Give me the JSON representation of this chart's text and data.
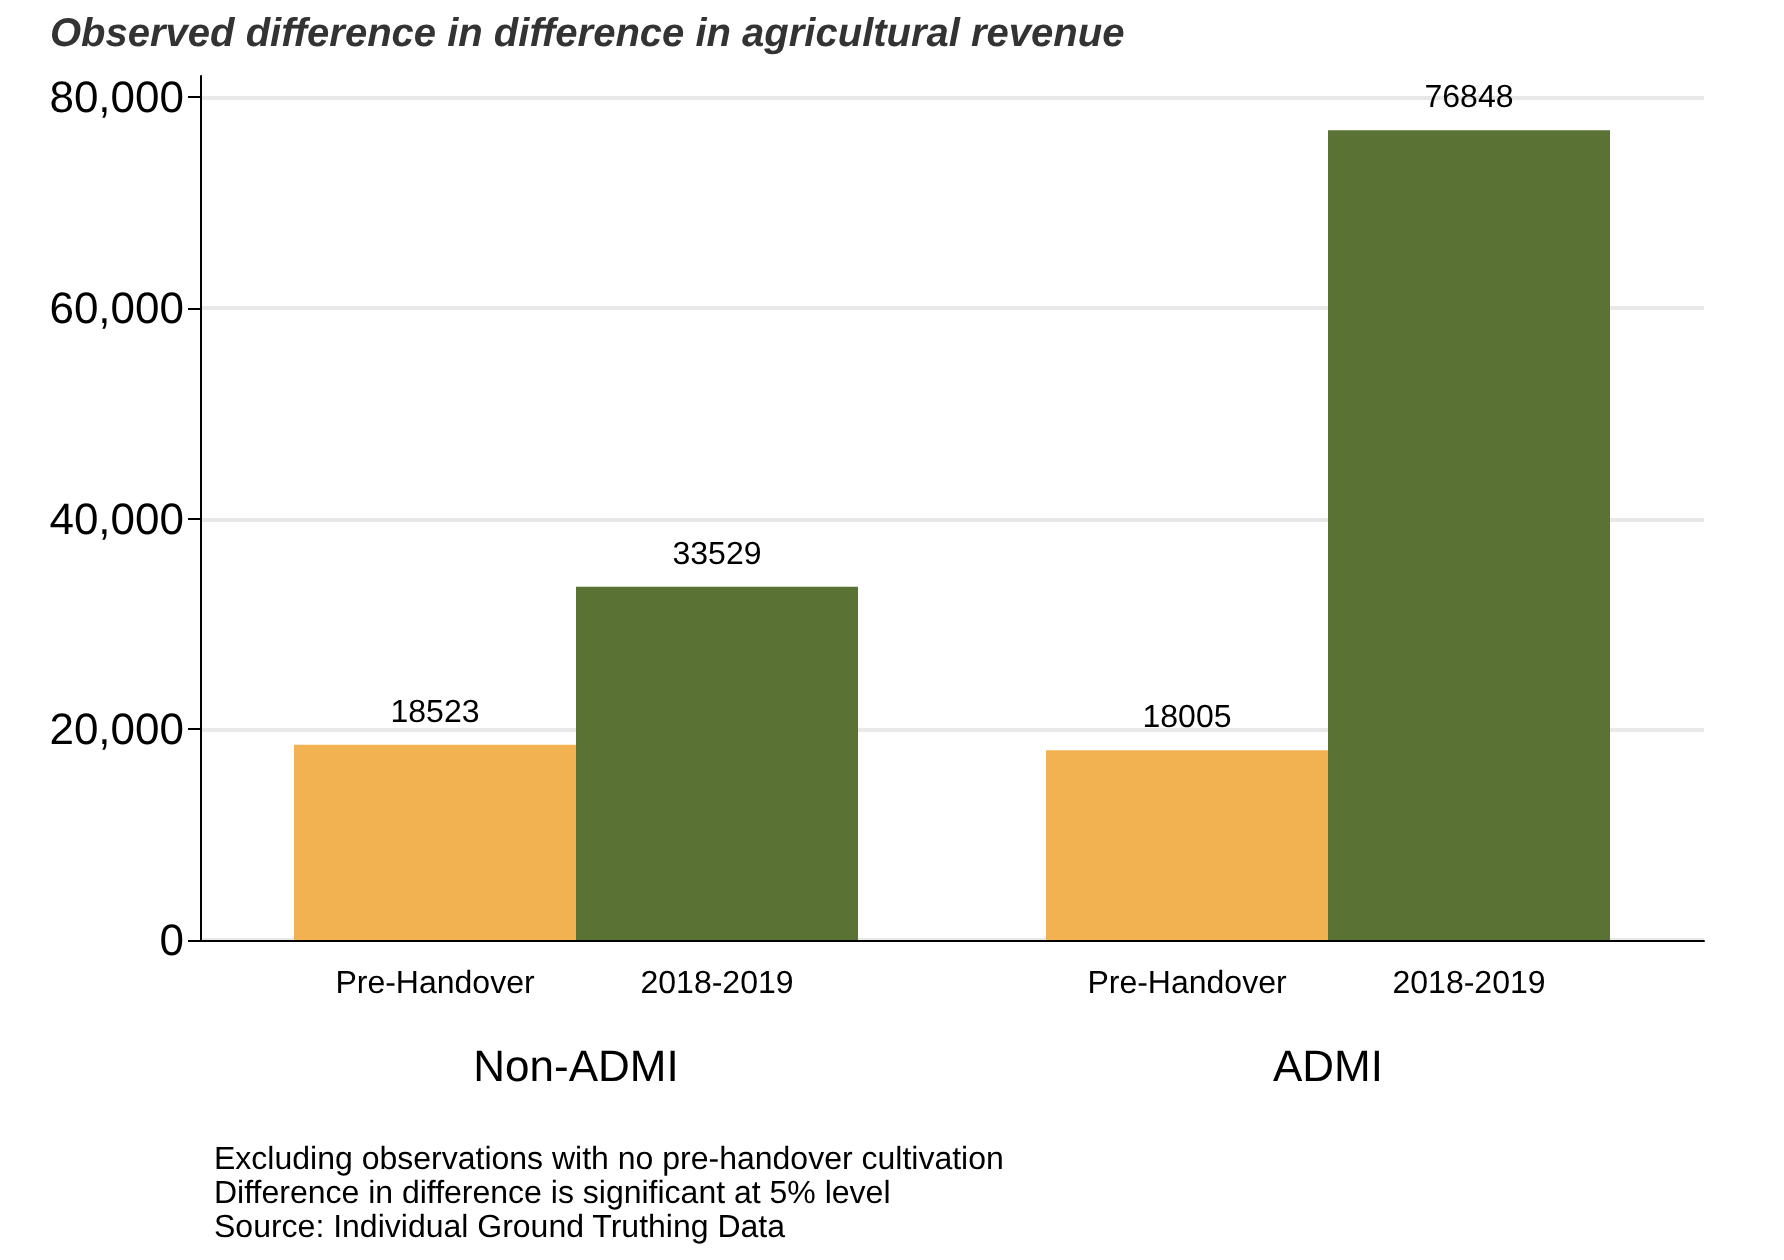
{
  "chart_data": {
    "type": "bar",
    "title": "Observed difference in difference in agricultural revenue",
    "categories": [
      "Non-ADMI",
      "ADMI"
    ],
    "series": [
      {
        "name": "Pre-Handover",
        "color": "#f2b252",
        "values": [
          18523,
          18005
        ]
      },
      {
        "name": "2018-2019",
        "color": "#5a7233",
        "values": [
          33529,
          76848
        ]
      }
    ],
    "ylim": [
      0,
      82000
    ],
    "yticks": [
      {
        "value": 0,
        "label": "0"
      },
      {
        "value": 20000,
        "label": "20,000"
      },
      {
        "value": 40000,
        "label": "40,000"
      },
      {
        "value": 60000,
        "label": "60,000"
      },
      {
        "value": 80000,
        "label": "80,000"
      }
    ],
    "grid": "y",
    "legend": false,
    "data_labels": true,
    "annotations": [
      "Excluding observations with no pre-handover cultivation",
      "Difference in difference is significant at 5% level",
      "Source: Individual Ground Truthing Data"
    ]
  }
}
